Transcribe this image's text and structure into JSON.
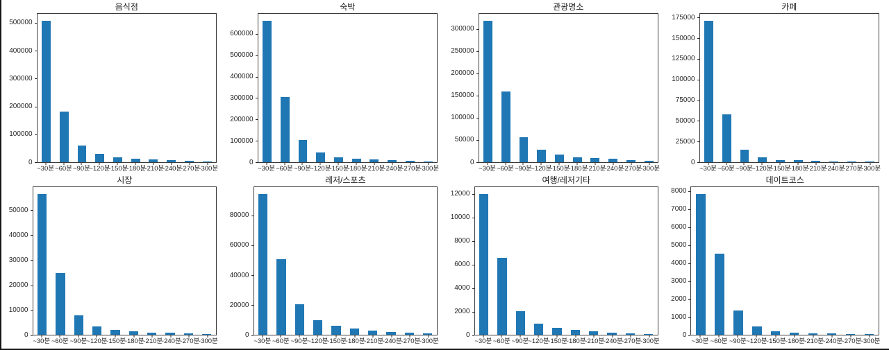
{
  "figure": {
    "background": "#ffffff",
    "bar_color": "#1f77b4",
    "spine_color": "#3a3a3a",
    "text_color": "#262626"
  },
  "chart_data": [
    {
      "type": "bar",
      "title": "음식점",
      "categories": [
        "~30분",
        "~60분",
        "~90분",
        "~120분",
        "~150분",
        "~180분",
        "~210분",
        "~240분",
        "~270분",
        "~300분"
      ],
      "values": [
        510000,
        183000,
        59000,
        29000,
        17000,
        12000,
        9000,
        5500,
        4500,
        2500
      ],
      "yticks": [
        0,
        100000,
        200000,
        300000,
        400000,
        500000
      ],
      "ylim": [
        0,
        535500
      ],
      "xlabel": "",
      "ylabel": "",
      "grid": false,
      "legend": null
    },
    {
      "type": "bar",
      "title": "숙박",
      "categories": [
        "~30분",
        "~60분",
        "~90분",
        "~120분",
        "~150분",
        "~180분",
        "~210분",
        "~240분",
        "~270분",
        "~300분"
      ],
      "values": [
        665000,
        307000,
        104000,
        43000,
        22000,
        15000,
        11000,
        7000,
        5000,
        2500
      ],
      "yticks": [
        0,
        100000,
        200000,
        300000,
        400000,
        500000,
        600000
      ],
      "ylim": [
        0,
        698250
      ],
      "xlabel": "",
      "ylabel": "",
      "grid": false,
      "legend": null
    },
    {
      "type": "bar",
      "title": "관광명소",
      "categories": [
        "~30분",
        "~60분",
        "~90분",
        "~120분",
        "~150분",
        "~180분",
        "~210분",
        "~240분",
        "~270분",
        "~300분"
      ],
      "values": [
        320000,
        160000,
        56000,
        27000,
        16000,
        11000,
        8000,
        6500,
        4000,
        3000
      ],
      "yticks": [
        0,
        50000,
        100000,
        150000,
        200000,
        250000,
        300000
      ],
      "ylim": [
        0,
        336000
      ],
      "xlabel": "",
      "ylabel": "",
      "grid": false,
      "legend": null
    },
    {
      "type": "bar",
      "title": "카페",
      "categories": [
        "~30분",
        "~60분",
        "~90분",
        "~120분",
        "~150분",
        "~180분",
        "~210분",
        "~240분",
        "~270분",
        "~300분"
      ],
      "values": [
        172000,
        58000,
        15000,
        5700,
        2400,
        1800,
        1100,
        700,
        600,
        500
      ],
      "yticks": [
        0,
        25000,
        50000,
        75000,
        100000,
        125000,
        150000,
        175000
      ],
      "ylim": [
        0,
        180600
      ],
      "xlabel": "",
      "ylabel": "",
      "grid": false,
      "legend": null
    },
    {
      "type": "bar",
      "title": "시장",
      "categories": [
        "~30분",
        "~60분",
        "~90분",
        "~120분",
        "~150분",
        "~180분",
        "~210분",
        "~240분",
        "~270분",
        "~300분"
      ],
      "values": [
        57000,
        25000,
        7800,
        3400,
        2000,
        1400,
        900,
        800,
        550,
        250
      ],
      "yticks": [
        0,
        10000,
        20000,
        30000,
        40000,
        50000
      ],
      "ylim": [
        0,
        59850
      ],
      "xlabel": "",
      "ylabel": "",
      "grid": false,
      "legend": null
    },
    {
      "type": "bar",
      "title": "레저/스포츠",
      "categories": [
        "~30분",
        "~60분",
        "~90분",
        "~120분",
        "~150분",
        "~180분",
        "~210분",
        "~240분",
        "~270분",
        "~300분"
      ],
      "values": [
        95000,
        51000,
        20500,
        10000,
        6000,
        4000,
        3000,
        1900,
        1400,
        800
      ],
      "yticks": [
        0,
        20000,
        40000,
        60000,
        80000
      ],
      "ylim": [
        0,
        99750
      ],
      "xlabel": "",
      "ylabel": "",
      "grid": false,
      "legend": null
    },
    {
      "type": "bar",
      "title": "여행/레저기타",
      "categories": [
        "~30분",
        "~60분",
        "~90분",
        "~120분",
        "~150분",
        "~180분",
        "~210분",
        "~240분",
        "~270분",
        "~300분"
      ],
      "values": [
        12100,
        6600,
        2050,
        950,
        600,
        400,
        280,
        180,
        130,
        50
      ],
      "yticks": [
        0,
        2000,
        4000,
        6000,
        8000,
        10000,
        12000
      ],
      "ylim": [
        0,
        12705
      ],
      "xlabel": "",
      "ylabel": "",
      "grid": false,
      "legend": null
    },
    {
      "type": "bar",
      "title": "데이트코스",
      "categories": [
        "~30분",
        "~60분",
        "~90분",
        "~120분",
        "~150분",
        "~180분",
        "~210분",
        "~240분",
        "~270분",
        "~300분"
      ],
      "values": [
        7900,
        4550,
        1370,
        450,
        200,
        110,
        80,
        60,
        35,
        30
      ],
      "yticks": [
        0,
        1000,
        2000,
        3000,
        4000,
        5000,
        6000,
        7000,
        8000
      ],
      "ylim": [
        0,
        8295
      ],
      "xlabel": "",
      "ylabel": "",
      "grid": false,
      "legend": null
    }
  ]
}
